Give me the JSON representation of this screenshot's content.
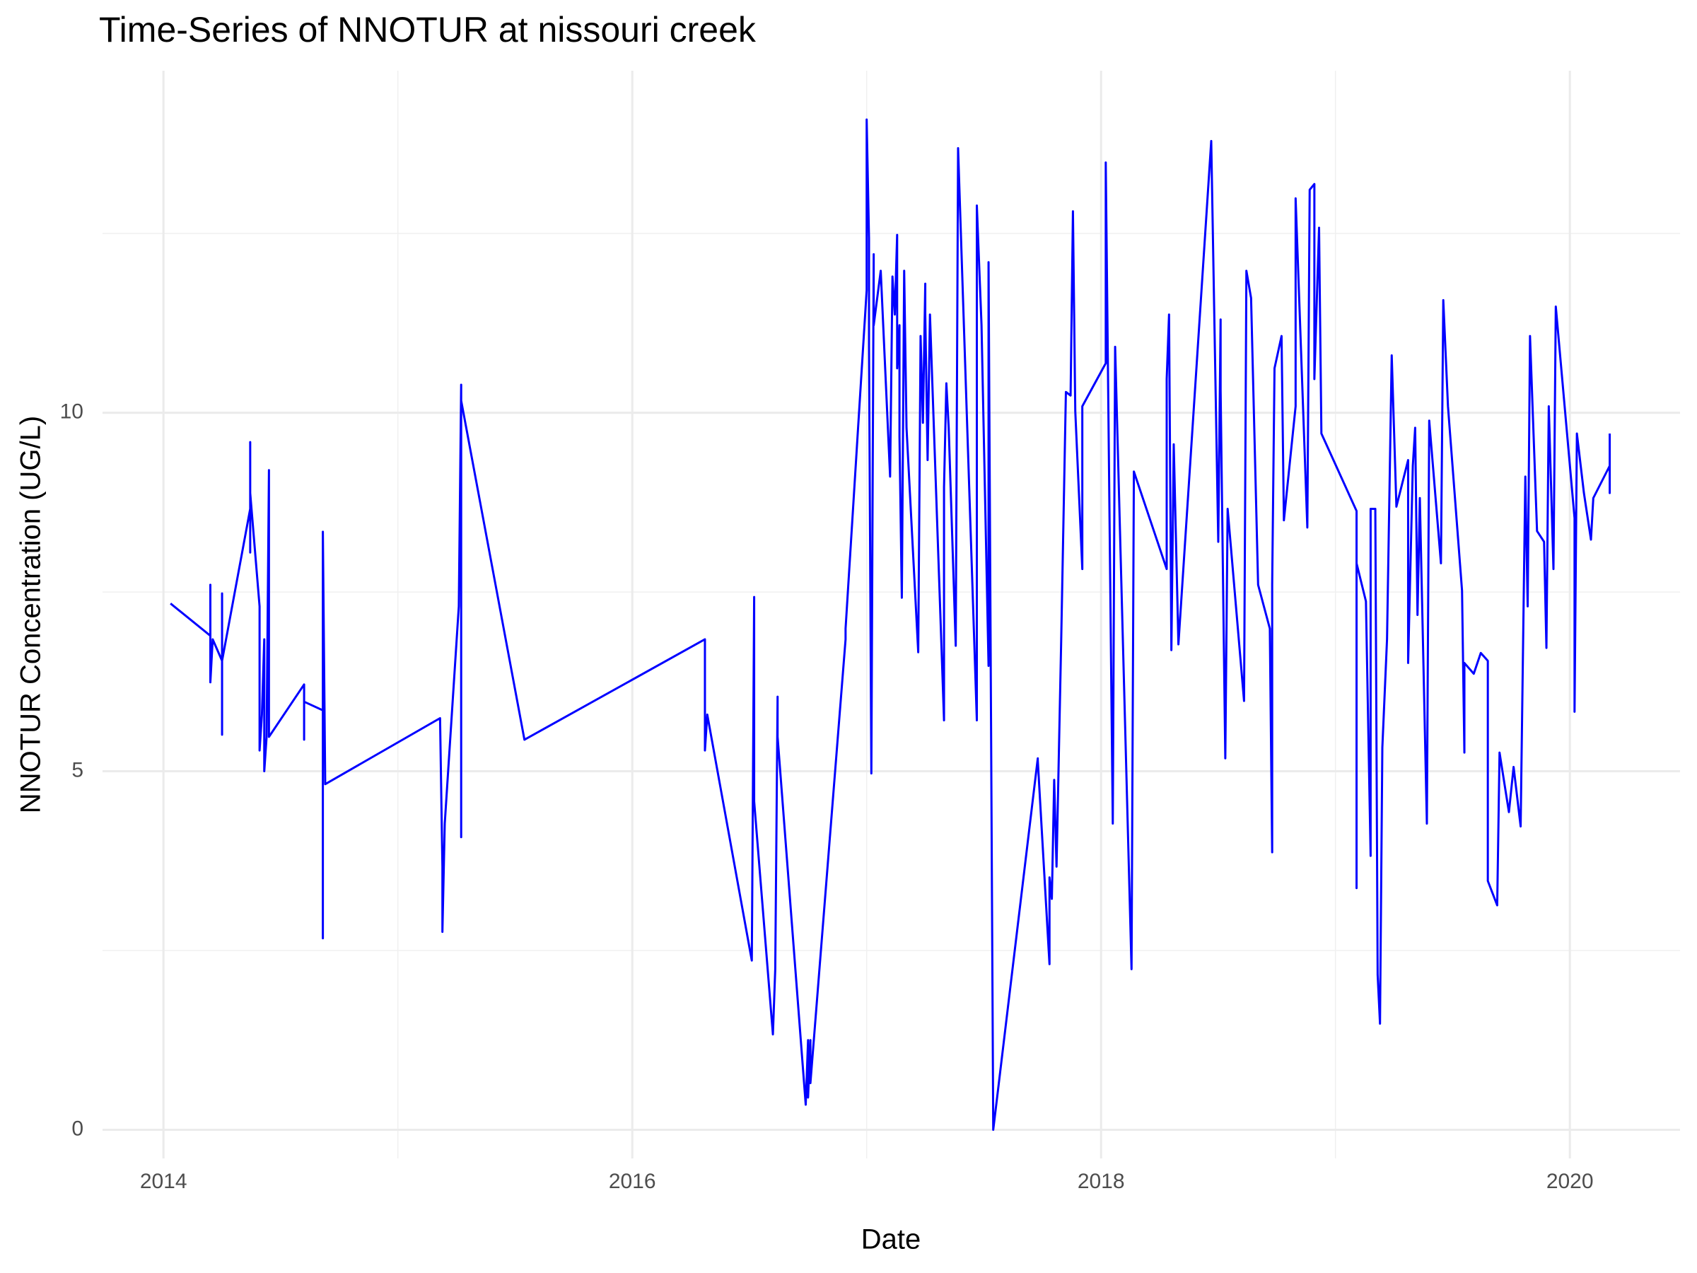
{
  "chart_data": {
    "type": "line",
    "title": "Time-Series of NNOTUR at nissouri creek",
    "x_label": "Date",
    "y_label": "NNOTUR Concentration (UG/L)",
    "color": "#0000ff",
    "grid": true,
    "xlim": [
      2013.74,
      2020.47
    ],
    "ylim": [
      -0.4,
      14.77
    ],
    "xticks": [
      2014,
      2016,
      2018,
      2020
    ],
    "yticks": [
      0,
      5,
      10
    ],
    "xminor": [
      2015,
      2017,
      2019
    ],
    "yminor": [
      2.5,
      7.5,
      12.5
    ],
    "x": [
      2014.03,
      2014.2,
      2014.2,
      2014.2,
      2014.21,
      2014.25,
      2014.25,
      2014.25,
      2014.25,
      2014.37,
      2014.37,
      2014.37,
      2014.37,
      2014.41,
      2014.41,
      2014.42,
      2014.43,
      2014.43,
      2014.44,
      2014.45,
      2014.45,
      2014.6,
      2014.6,
      2014.6,
      2014.68,
      2014.68,
      2014.68,
      2014.69,
      2015.18,
      2015.19,
      2015.19,
      2015.2,
      2015.26,
      2015.27,
      2015.27,
      2015.27,
      2015.54,
      2016.31,
      2016.31,
      2016.32,
      2016.51,
      2016.52,
      2016.52,
      2016.6,
      2016.61,
      2016.62,
      2016.62,
      2016.74,
      2016.75,
      2016.75,
      2016.76,
      2016.76,
      2016.91,
      2016.91,
      2017.0,
      2017.0,
      2017.01,
      2017.01,
      2017.02,
      2017.03,
      2017.03,
      2017.06,
      2017.1,
      2017.11,
      2017.12,
      2017.13,
      2017.13,
      2017.14,
      2017.14,
      2017.15,
      2017.16,
      2017.17,
      2017.22,
      2017.23,
      2017.24,
      2017.25,
      2017.25,
      2017.26,
      2017.27,
      2017.33,
      2017.33,
      2017.34,
      2017.35,
      2017.38,
      2017.39,
      2017.47,
      2017.47,
      2017.49,
      2017.52,
      2017.52,
      2017.54,
      2017.73,
      2017.73,
      2017.74,
      2017.78,
      2017.78,
      2017.79,
      2017.8,
      2017.81,
      2017.83,
      2017.85,
      2017.87,
      2017.88,
      2017.89,
      2017.92,
      2017.92,
      2018.02,
      2018.02,
      2018.05,
      2018.06,
      2018.13,
      2018.14,
      2018.28,
      2018.28,
      2018.29,
      2018.3,
      2018.31,
      2018.33,
      2018.47,
      2018.5,
      2018.51,
      2018.51,
      2018.53,
      2018.54,
      2018.61,
      2018.62,
      2018.64,
      2018.67,
      2018.72,
      2018.73,
      2018.73,
      2018.74,
      2018.75,
      2018.77,
      2018.78,
      2018.83,
      2018.83,
      2018.88,
      2018.89,
      2018.91,
      2018.91,
      2018.93,
      2018.94,
      2019.09,
      2019.09,
      2019.09,
      2019.13,
      2019.15,
      2019.15,
      2019.17,
      2019.18,
      2019.19,
      2019.2,
      2019.22,
      2019.24,
      2019.26,
      2019.31,
      2019.31,
      2019.33,
      2019.34,
      2019.35,
      2019.36,
      2019.39,
      2019.4,
      2019.45,
      2019.46,
      2019.48,
      2019.54,
      2019.55,
      2019.55,
      2019.59,
      2019.62,
      2019.65,
      2019.65,
      2019.69,
      2019.7,
      2019.74,
      2019.76,
      2019.79,
      2019.81,
      2019.82,
      2019.83,
      2019.86,
      2019.89,
      2019.9,
      2019.91,
      2019.93,
      2019.94,
      2020.02,
      2020.02,
      2020.03,
      2020.06,
      2020.09,
      2020.1,
      2020.17,
      2020.17,
      2020.17
    ],
    "values": [
      7.34,
      6.89,
      7.6,
      6.24,
      6.84,
      6.54,
      7.48,
      5.51,
      6.54,
      8.66,
      9.59,
      8.05,
      8.88,
      7.3,
      5.29,
      5.79,
      6.84,
      5.0,
      5.48,
      9.2,
      5.48,
      6.21,
      5.44,
      5.97,
      5.85,
      2.67,
      8.34,
      4.82,
      5.74,
      3.67,
      2.76,
      4.27,
      7.3,
      10.39,
      4.08,
      10.17,
      5.44,
      6.84,
      5.29,
      5.79,
      2.36,
      7.43,
      4.58,
      1.33,
      2.24,
      6.04,
      5.48,
      0.35,
      1.25,
      0.45,
      1.25,
      0.65,
      6.84,
      6.99,
      11.71,
      14.09,
      12.43,
      10.92,
      4.97,
      12.21,
      11.22,
      11.98,
      9.11,
      11.9,
      11.37,
      12.48,
      10.62,
      11.22,
      9.67,
      7.42,
      11.98,
      9.79,
      6.66,
      11.07,
      9.86,
      11.8,
      11.37,
      9.34,
      11.37,
      5.71,
      8.96,
      10.41,
      9.79,
      6.75,
      13.69,
      5.71,
      12.89,
      11.22,
      6.47,
      12.1,
      0,
      5.18,
      5.15,
      4.58,
      2.31,
      3.52,
      3.22,
      4.88,
      3.67,
      6.84,
      10.29,
      10.24,
      12.81,
      10.02,
      7.82,
      10.09,
      10.69,
      13.49,
      4.27,
      10.92,
      2.24,
      9.18,
      7.82,
      10.47,
      11.37,
      6.69,
      9.56,
      6.77,
      13.79,
      8.2,
      11.3,
      10.32,
      5.18,
      8.66,
      5.98,
      11.98,
      11.6,
      7.6,
      6.99,
      3.87,
      7.6,
      10.62,
      10.77,
      11.07,
      8.5,
      10.09,
      12.99,
      8.4,
      13.11,
      13.19,
      10.47,
      12.58,
      9.71,
      8.63,
      3.37,
      7.9,
      7.37,
      3.82,
      8.66,
      8.66,
      2.16,
      1.48,
      5.33,
      6.84,
      10.8,
      8.69,
      9.34,
      6.51,
      9.26,
      9.79,
      7.18,
      8.81,
      4.27,
      9.89,
      7.9,
      11.57,
      10.09,
      7.52,
      5.26,
      6.51,
      6.36,
      6.65,
      6.54,
      3.47,
      3.13,
      5.26,
      4.43,
      5.06,
      4.23,
      9.11,
      7.3,
      11.07,
      8.35,
      8.2,
      6.72,
      10.09,
      7.82,
      11.48,
      8.53,
      5.83,
      9.71,
      8.88,
      8.23,
      8.81,
      9.26,
      8.88,
      9.71
    ]
  }
}
